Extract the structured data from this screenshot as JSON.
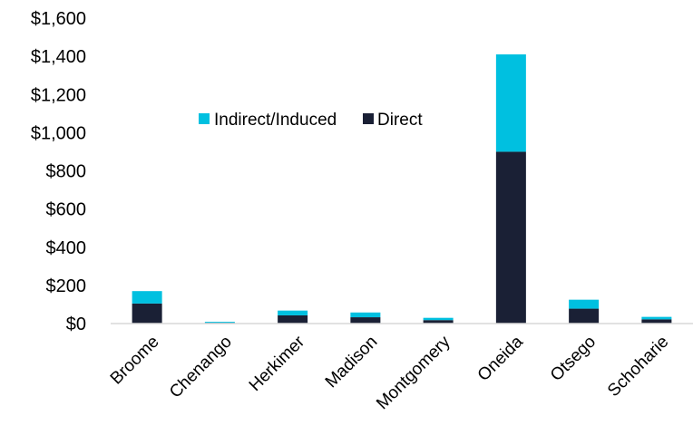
{
  "chart_data": {
    "type": "bar",
    "stacked": true,
    "categories": [
      "Broome",
      "Chenango",
      "Herkimer",
      "Madison",
      "Montgomery",
      "Oneida",
      "Otsego",
      "Schoharie"
    ],
    "series": [
      {
        "name": "Direct",
        "color": "#1a2035",
        "values": [
          105,
          4,
          43,
          33,
          18,
          900,
          78,
          22
        ]
      },
      {
        "name": "Indirect/Induced",
        "color": "#00c0e0",
        "values": [
          65,
          5,
          25,
          25,
          12,
          510,
          47,
          13
        ]
      }
    ],
    "y_tick_labels": [
      "$0",
      "$200",
      "$400",
      "$600",
      "$800",
      "$1,000",
      "$1,200",
      "$1,400",
      "$1,600"
    ],
    "ylim": [
      0,
      1600
    ],
    "grid": false,
    "legend": {
      "placement": "upper-left-inside",
      "entries": [
        "Indirect/Induced",
        "Direct"
      ]
    },
    "title": "",
    "xlabel": "",
    "ylabel": ""
  }
}
